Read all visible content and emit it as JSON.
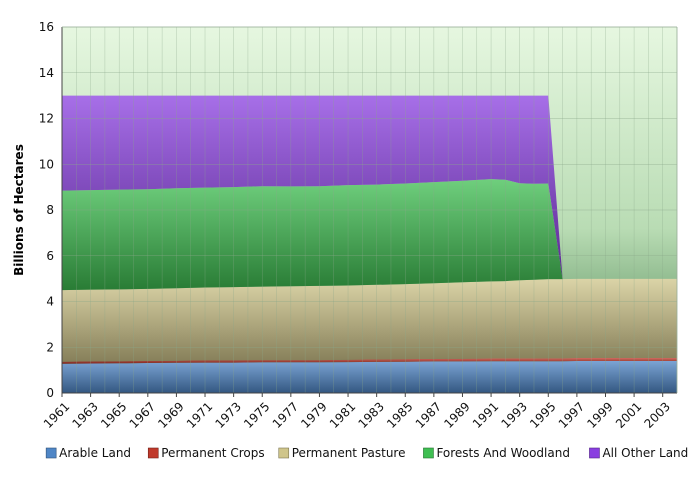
{
  "chart_data": {
    "type": "area",
    "stacked": true,
    "title": "",
    "xlabel": "",
    "ylabel": "Billions of Hectares",
    "ylim": [
      0,
      16
    ],
    "yticks": [
      0,
      2,
      4,
      6,
      8,
      10,
      12,
      14,
      16
    ],
    "xlim": [
      1961,
      2004
    ],
    "xticks": [
      "1961",
      "1963",
      "1965",
      "1967",
      "1969",
      "1971",
      "1973",
      "1975",
      "1977",
      "1979",
      "1981",
      "1983",
      "1985",
      "1987",
      "1989",
      "1991",
      "1993",
      "1995",
      "1997",
      "1999",
      "2001",
      "2003"
    ],
    "grid": true,
    "legend_position": "bottom",
    "x": [
      1961,
      1963,
      1965,
      1967,
      1969,
      1971,
      1973,
      1975,
      1977,
      1979,
      1981,
      1983,
      1985,
      1987,
      1989,
      1991,
      1992,
      1993,
      1994,
      1995,
      1996,
      1997,
      1999,
      2001,
      2003,
      2004
    ],
    "series": [
      {
        "name": "Arable Land",
        "color": "#4f86c6",
        "values": [
          1.28,
          1.29,
          1.3,
          1.31,
          1.32,
          1.33,
          1.33,
          1.34,
          1.34,
          1.34,
          1.35,
          1.36,
          1.37,
          1.38,
          1.38,
          1.39,
          1.39,
          1.39,
          1.39,
          1.39,
          1.39,
          1.4,
          1.4,
          1.4,
          1.4,
          1.4
        ]
      },
      {
        "name": "Permanent Crops",
        "color": "#c0392b",
        "values": [
          0.09,
          0.09,
          0.09,
          0.09,
          0.09,
          0.1,
          0.1,
          0.1,
          0.1,
          0.1,
          0.1,
          0.11,
          0.11,
          0.11,
          0.12,
          0.12,
          0.12,
          0.12,
          0.12,
          0.13,
          0.13,
          0.13,
          0.13,
          0.13,
          0.13,
          0.13
        ]
      },
      {
        "name": "Permanent Pasture",
        "color": "#cfc58a",
        "values": [
          3.13,
          3.14,
          3.14,
          3.15,
          3.17,
          3.18,
          3.2,
          3.21,
          3.23,
          3.24,
          3.25,
          3.26,
          3.28,
          3.31,
          3.34,
          3.37,
          3.38,
          3.42,
          3.44,
          3.46,
          3.46,
          3.46,
          3.46,
          3.46,
          3.46,
          3.46
        ]
      },
      {
        "name": "Forests And Woodland",
        "color": "#3fbf52",
        "values": [
          4.35,
          4.35,
          4.36,
          4.36,
          4.37,
          4.37,
          4.37,
          4.39,
          4.36,
          4.36,
          4.39,
          4.38,
          4.4,
          4.42,
          4.44,
          4.47,
          4.43,
          4.24,
          4.2,
          4.18,
          0,
          0,
          0,
          0,
          0,
          0
        ]
      },
      {
        "name": "All Other Land",
        "color": "#8a3fe0",
        "values": [
          4.15,
          4.13,
          4.11,
          4.09,
          4.05,
          4.02,
          4.0,
          3.96,
          3.97,
          3.96,
          3.91,
          3.89,
          3.84,
          3.78,
          3.72,
          3.65,
          3.68,
          3.83,
          3.85,
          3.84,
          0,
          0,
          0,
          0,
          0,
          0
        ]
      }
    ]
  }
}
